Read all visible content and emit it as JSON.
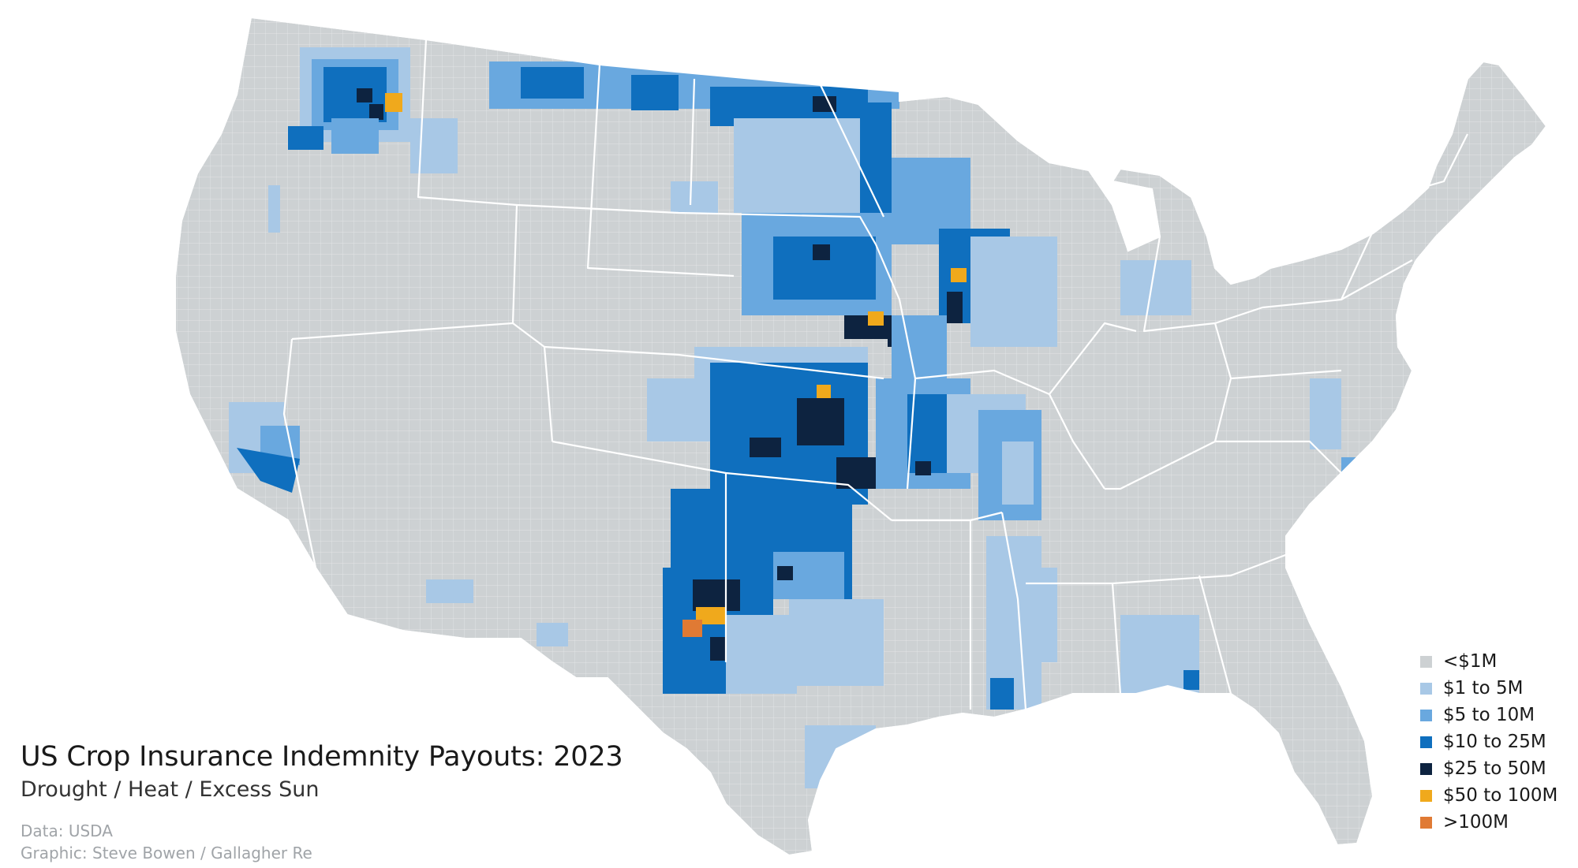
{
  "map": {
    "title": "US Crop Insurance Indemnity Payouts: 2023",
    "subtitle": "Drought / Heat / Excess Sun",
    "credits": [
      "Data: USDA",
      "Graphic: Steve Bowen / Gallagher Re"
    ],
    "base_color": "#cdd1d3",
    "border_color": "#ffffff"
  },
  "legend": {
    "items": [
      {
        "label": "<$1M",
        "color": "#cdd1d3"
      },
      {
        "label": "$1 to 5M",
        "color": "#a8c8e6"
      },
      {
        "label": "$5 to 10M",
        "color": "#69a8df"
      },
      {
        "label": "$10 to 25M",
        "color": "#0f6fbe"
      },
      {
        "label": "$25 to 50M",
        "color": "#0d2340"
      },
      {
        "label": "$50 to 100M",
        "color": "#f0a91c"
      },
      {
        "label": ">100M",
        "color": "#e07a34"
      }
    ]
  }
}
